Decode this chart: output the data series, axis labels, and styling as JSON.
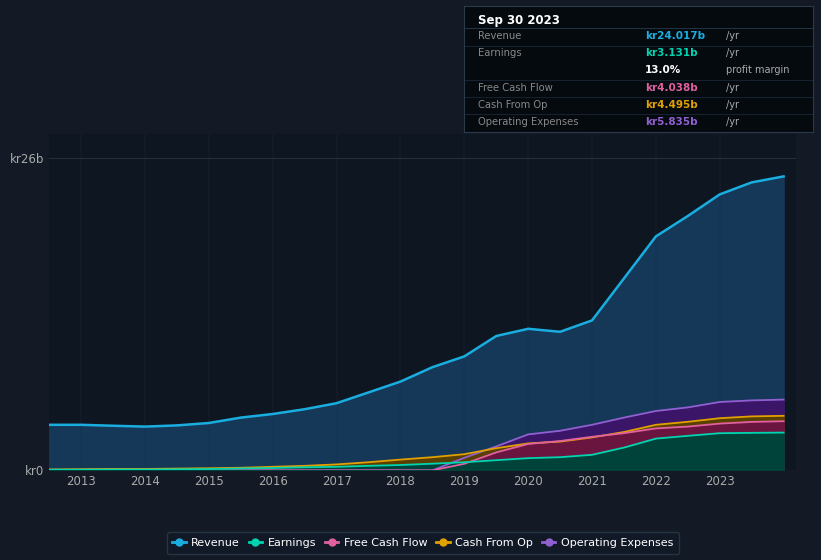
{
  "background_color": "#131a25",
  "plot_bg_color": "#0e1621",
  "years": [
    2012.5,
    2013,
    2013.5,
    2014,
    2014.5,
    2015,
    2015.5,
    2016,
    2016.5,
    2017,
    2017.5,
    2018,
    2018.5,
    2019,
    2019.5,
    2020,
    2020.5,
    2021,
    2021.5,
    2022,
    2022.5,
    2023,
    2023.5,
    2024.0
  ],
  "revenue": [
    3.8,
    3.8,
    3.72,
    3.65,
    3.75,
    3.95,
    4.4,
    4.7,
    5.1,
    5.6,
    6.5,
    7.4,
    8.6,
    9.5,
    11.2,
    11.8,
    11.55,
    12.5,
    16.0,
    19.5,
    21.2,
    23.0,
    24.0,
    24.5
  ],
  "earnings": [
    0.05,
    0.06,
    0.07,
    0.07,
    0.09,
    0.11,
    0.16,
    0.2,
    0.26,
    0.3,
    0.38,
    0.45,
    0.56,
    0.68,
    0.85,
    1.02,
    1.1,
    1.3,
    1.9,
    2.65,
    2.88,
    3.1,
    3.13,
    3.15
  ],
  "free_cash_flow": [
    0.0,
    0.0,
    0.0,
    0.0,
    0.0,
    0.0,
    0.0,
    0.0,
    0.0,
    0.0,
    0.0,
    0.0,
    0.0,
    0.55,
    1.5,
    2.2,
    2.45,
    2.8,
    3.1,
    3.5,
    3.65,
    3.9,
    4.04,
    4.1
  ],
  "cash_from_op": [
    0.08,
    0.1,
    0.12,
    0.12,
    0.15,
    0.18,
    0.22,
    0.3,
    0.38,
    0.5,
    0.68,
    0.9,
    1.1,
    1.35,
    1.85,
    2.25,
    2.4,
    2.75,
    3.2,
    3.8,
    4.05,
    4.35,
    4.5,
    4.55
  ],
  "op_expenses": [
    0.0,
    0.0,
    0.0,
    0.0,
    0.0,
    0.0,
    0.0,
    0.0,
    0.0,
    0.0,
    0.0,
    0.0,
    0.0,
    1.05,
    2.0,
    3.0,
    3.3,
    3.8,
    4.4,
    4.95,
    5.25,
    5.7,
    5.835,
    5.9
  ],
  "ylim": [
    0,
    28
  ],
  "xlim": [
    2012.5,
    2024.2
  ],
  "ytick_positions": [
    0,
    26
  ],
  "ytick_labels": [
    "kr0",
    "kr26b"
  ],
  "xtick_positions": [
    2013,
    2014,
    2015,
    2016,
    2017,
    2018,
    2019,
    2020,
    2021,
    2022,
    2023
  ],
  "revenue_line_color": "#1aaee0",
  "revenue_fill_color": "#153859",
  "earnings_line_color": "#00d4b0",
  "earnings_fill_color": "#00433a",
  "fcf_line_color": "#e060a0",
  "fcf_fill_color": "#6a1540",
  "cfo_line_color": "#e0a000",
  "cfo_fill_color": "#5a4000",
  "opex_line_color": "#9060d0",
  "opex_fill_color": "#3a1568",
  "legend_items": [
    {
      "label": "Revenue",
      "color": "#1aaee0"
    },
    {
      "label": "Earnings",
      "color": "#00d4b0"
    },
    {
      "label": "Free Cash Flow",
      "color": "#e060a0"
    },
    {
      "label": "Cash From Op",
      "color": "#e0a000"
    },
    {
      "label": "Operating Expenses",
      "color": "#9060d0"
    }
  ],
  "info_box": {
    "date": "Sep 30 2023",
    "rows": [
      {
        "label": "Revenue",
        "value": "kr24.017b",
        "unit": "/yr",
        "value_color": "#1aaee0"
      },
      {
        "label": "Earnings",
        "value": "kr3.131b",
        "unit": "/yr",
        "value_color": "#00d4b0"
      },
      {
        "label": "",
        "value": "13.0%",
        "unit": "profit margin",
        "value_color": "#ffffff"
      },
      {
        "label": "Free Cash Flow",
        "value": "kr4.038b",
        "unit": "/yr",
        "value_color": "#e060a0"
      },
      {
        "label": "Cash From Op",
        "value": "kr4.495b",
        "unit": "/yr",
        "value_color": "#e0a000"
      },
      {
        "label": "Operating Expenses",
        "value": "kr5.835b",
        "unit": "/yr",
        "value_color": "#9060d0"
      }
    ]
  }
}
